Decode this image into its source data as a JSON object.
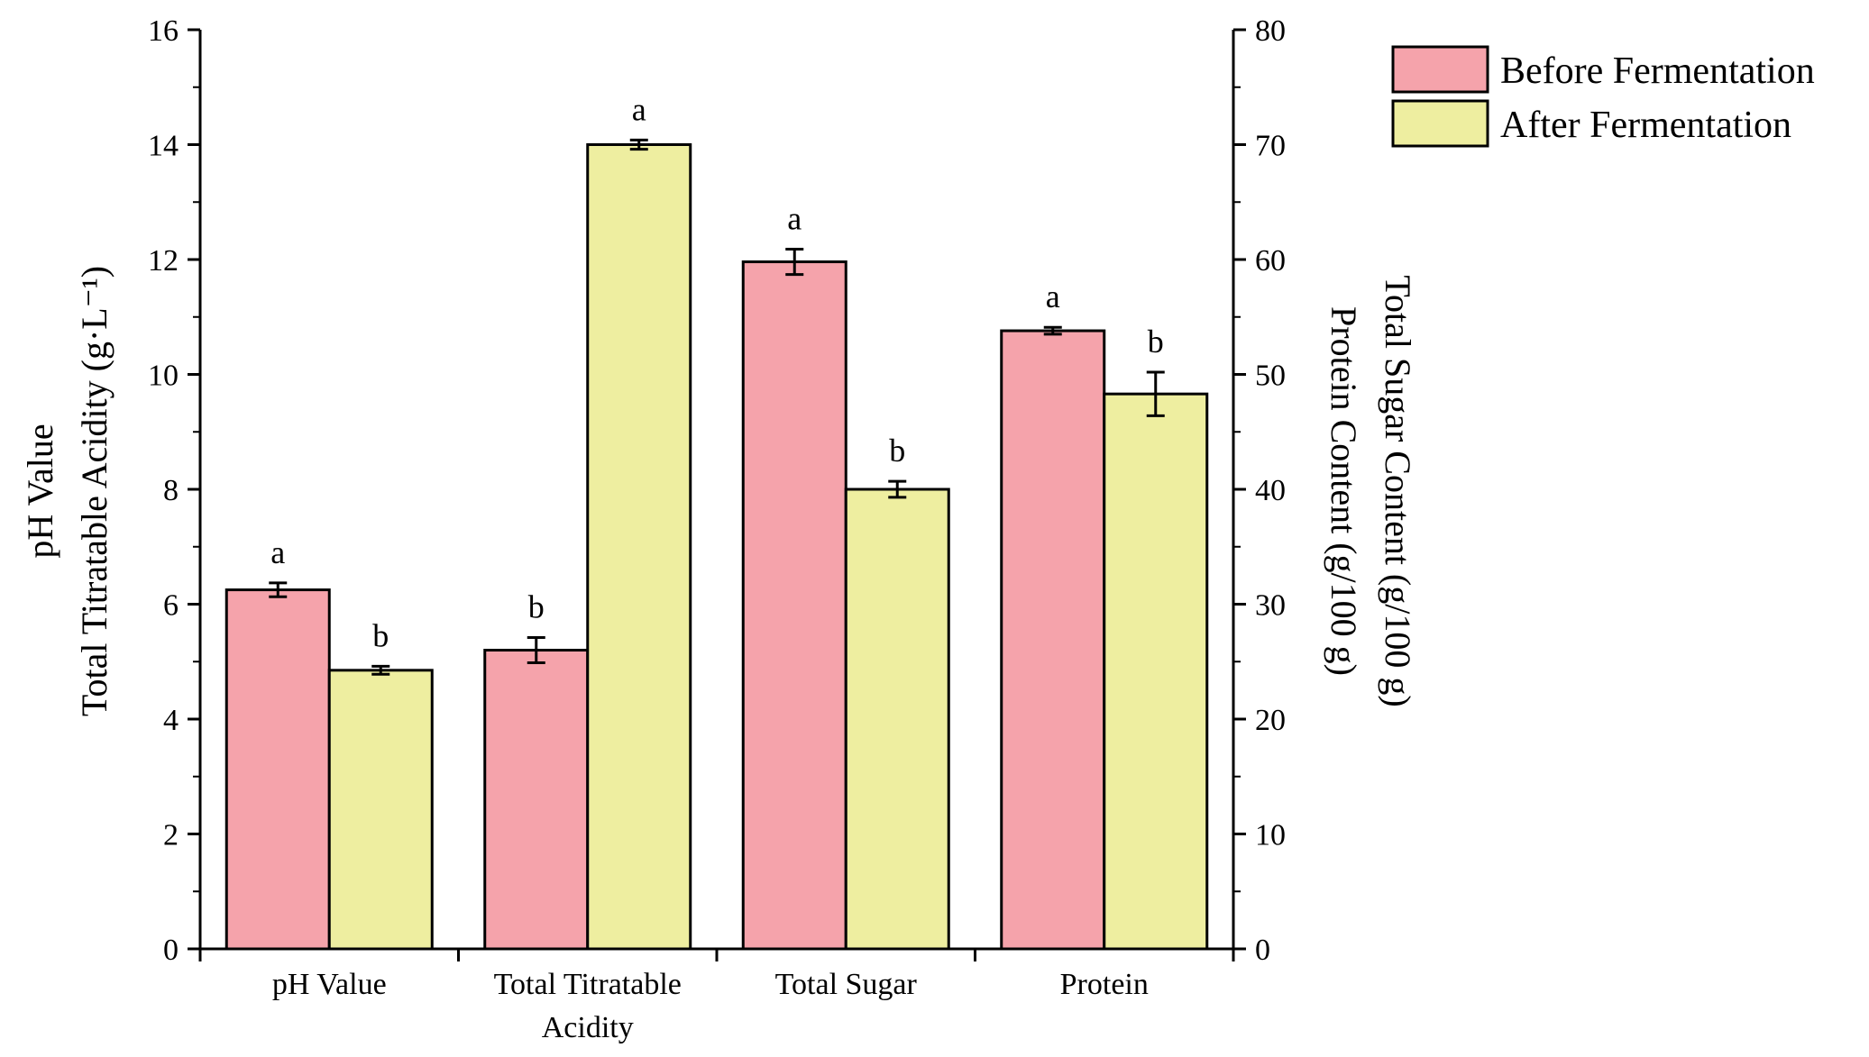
{
  "chart_data": {
    "type": "bar",
    "categories": [
      {
        "lines": [
          "pH Value"
        ],
        "axis": "left"
      },
      {
        "lines": [
          "Total Titratable",
          "Acidity"
        ],
        "axis": "left"
      },
      {
        "lines": [
          "Total Sugar"
        ],
        "axis": "right"
      },
      {
        "lines": [
          "Protein"
        ],
        "axis": "right"
      }
    ],
    "series": [
      {
        "name": "Before Fermentation",
        "color": "#f5a3ab",
        "values": [
          6.25,
          5.2,
          59.8,
          53.8
        ],
        "errors": [
          0.12,
          0.22,
          1.1,
          0.3
        ],
        "labels": [
          "a",
          "b",
          "a",
          "a"
        ]
      },
      {
        "name": "After Fermentation",
        "color": "#eeeea0",
        "values": [
          4.85,
          14.0,
          40.0,
          48.3
        ],
        "errors": [
          0.07,
          0.08,
          0.7,
          1.9
        ],
        "labels": [
          "b",
          "a",
          "b",
          "b"
        ]
      }
    ],
    "left_axis": {
      "title_lines": [
        "pH Value",
        "Total Titratable Acidity (g·L⁻¹)"
      ],
      "ylim": [
        0,
        16
      ],
      "ticks": [
        "0",
        "2",
        "4",
        "6",
        "8",
        "10",
        "12",
        "14",
        "16"
      ]
    },
    "right_axis": {
      "title_lines": [
        "Total Sugar Content (g/100 g)",
        "Protein Content (g/100 g)"
      ],
      "ylim": [
        0,
        80
      ],
      "ticks": [
        "0",
        "10",
        "20",
        "30",
        "40",
        "50",
        "60",
        "70",
        "80"
      ]
    },
    "legend_position": "top-right"
  }
}
